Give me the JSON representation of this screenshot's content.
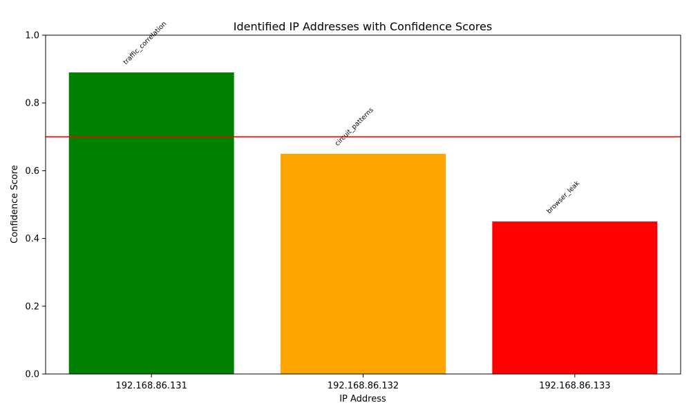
{
  "chart_data": {
    "type": "bar",
    "title": "Identified IP Addresses with Confidence Scores",
    "xlabel": "IP Address",
    "ylabel": "Confidence Score",
    "ylim": [
      0,
      1.0
    ],
    "yticks": [
      0.0,
      0.2,
      0.4,
      0.6,
      0.8,
      1.0
    ],
    "ytick_labels": [
      "0.0",
      "0.2",
      "0.4",
      "0.6",
      "0.8",
      "1.0"
    ],
    "categories": [
      "192.168.86.131",
      "192.168.86.132",
      "192.168.86.133"
    ],
    "values": [
      0.89,
      0.65,
      0.45
    ],
    "bar_colors": [
      "#008000",
      "#ffa500",
      "#ff0000"
    ],
    "bar_annotations": [
      "traffic_correlation",
      "circuit_patterns",
      "browser_leak"
    ],
    "threshold": {
      "value": 0.7,
      "color": "#ff0000"
    },
    "grid": false,
    "legend": "none"
  }
}
